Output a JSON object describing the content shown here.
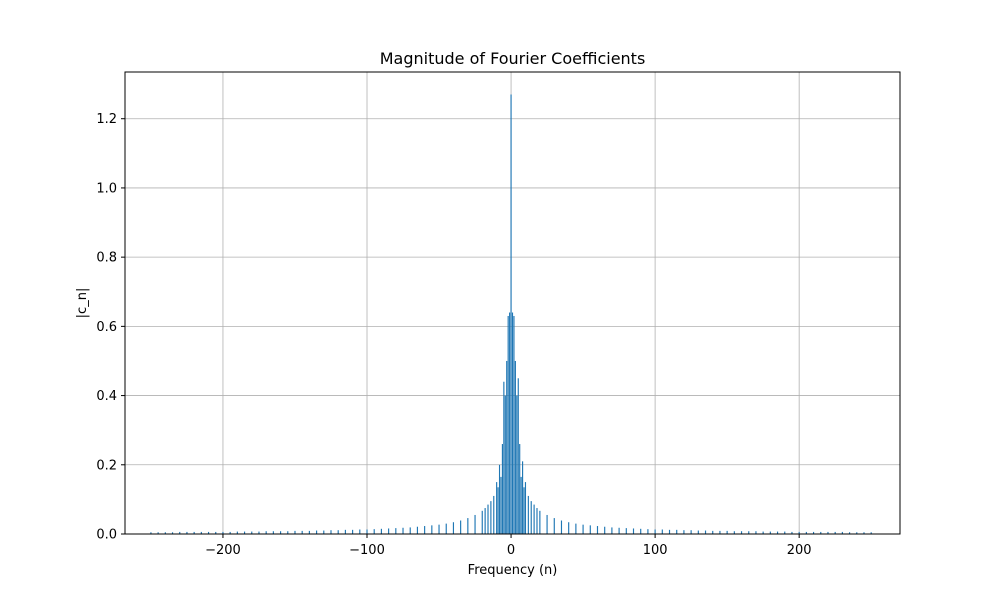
{
  "chart_data": {
    "type": "bar",
    "title": "Magnitude of Fourier Coefficients",
    "xlabel": "Frequency (n)",
    "ylabel": "|c_n|",
    "xlim": [
      -268,
      270
    ],
    "ylim": [
      0,
      1.335
    ],
    "xticks": [
      -200,
      -100,
      0,
      100,
      200
    ],
    "xtick_labels": [
      "−200",
      "−100",
      "0",
      "100",
      "200"
    ],
    "yticks": [
      0.0,
      0.2,
      0.4,
      0.6,
      0.8,
      1.0,
      1.2
    ],
    "ytick_labels": [
      "0.0",
      "0.2",
      "0.4",
      "0.6",
      "0.8",
      "1.0",
      "1.2"
    ],
    "grid": true,
    "bar_color": "#1f77b4",
    "series": [
      {
        "x": [
          -250,
          -245,
          -240,
          -235,
          -230,
          -225,
          -220,
          -215,
          -210,
          -205,
          -200,
          -195,
          -190,
          -185,
          -180,
          -175,
          -170,
          -165,
          -160,
          -155,
          -150,
          -145,
          -140,
          -135,
          -130,
          -125,
          -120,
          -115,
          -110,
          -105,
          -100,
          -95,
          -90,
          -85,
          -80,
          -75,
          -70,
          -65,
          -60,
          -55,
          -50,
          -45,
          -40,
          -35,
          -30,
          -25,
          -20,
          -18,
          -16,
          -14,
          -12,
          -10,
          -9,
          -8,
          -7,
          -6,
          -5,
          -4,
          -3,
          -2,
          -1,
          0,
          1,
          2,
          3,
          4,
          5,
          6,
          7,
          8,
          9,
          10,
          12,
          14,
          16,
          18,
          20,
          25,
          30,
          35,
          40,
          45,
          50,
          55,
          60,
          65,
          70,
          75,
          80,
          85,
          90,
          95,
          100,
          105,
          110,
          115,
          120,
          125,
          130,
          135,
          140,
          145,
          150,
          155,
          160,
          165,
          170,
          175,
          180,
          185,
          190,
          195,
          200,
          205,
          210,
          215,
          220,
          225,
          230,
          235,
          240,
          245,
          250
        ],
        "values": [
          0.005,
          0.005,
          0.005,
          0.005,
          0.006,
          0.006,
          0.006,
          0.006,
          0.006,
          0.006,
          0.006,
          0.006,
          0.007,
          0.007,
          0.007,
          0.007,
          0.008,
          0.008,
          0.008,
          0.008,
          0.009,
          0.009,
          0.009,
          0.01,
          0.01,
          0.011,
          0.011,
          0.012,
          0.012,
          0.013,
          0.013,
          0.014,
          0.015,
          0.016,
          0.017,
          0.018,
          0.019,
          0.021,
          0.023,
          0.025,
          0.027,
          0.03,
          0.034,
          0.039,
          0.046,
          0.055,
          0.067,
          0.075,
          0.085,
          0.095,
          0.11,
          0.15,
          0.135,
          0.2,
          0.165,
          0.26,
          0.44,
          0.4,
          0.5,
          0.63,
          0.64,
          1.27,
          0.64,
          0.63,
          0.5,
          0.4,
          0.45,
          0.26,
          0.165,
          0.21,
          0.135,
          0.15,
          0.11,
          0.095,
          0.085,
          0.075,
          0.067,
          0.055,
          0.046,
          0.039,
          0.034,
          0.03,
          0.027,
          0.025,
          0.023,
          0.021,
          0.019,
          0.018,
          0.017,
          0.016,
          0.015,
          0.014,
          0.013,
          0.013,
          0.012,
          0.012,
          0.011,
          0.011,
          0.01,
          0.01,
          0.009,
          0.009,
          0.009,
          0.008,
          0.008,
          0.008,
          0.008,
          0.007,
          0.007,
          0.007,
          0.007,
          0.006,
          0.006,
          0.006,
          0.006,
          0.006,
          0.006,
          0.006,
          0.006,
          0.005,
          0.005,
          0.005,
          0.005
        ]
      }
    ]
  }
}
